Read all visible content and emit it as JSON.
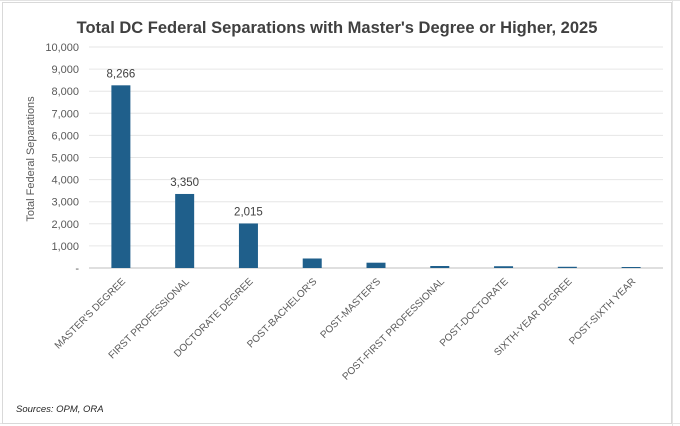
{
  "chart_data": {
    "type": "bar",
    "title": "Total DC Federal Separations with Master's Degree or Higher, 2025",
    "xlabel": "",
    "ylabel": "Total Federal Separations",
    "ylim": [
      0,
      10000
    ],
    "yticks": [
      "-",
      "1,000",
      "2,000",
      "3,000",
      "4,000",
      "5,000",
      "6,000",
      "7,000",
      "8,000",
      "9,000",
      "10,000"
    ],
    "categories": [
      "MASTER'S DEGREE",
      "FIRST PROFESSIONAL",
      "DOCTORATE DEGREE",
      "POST-BACHELOR'S",
      "POST-MASTER'S",
      "POST-FIRST PROFESSIONAL",
      "POST-DOCTORATE",
      "SIXTH-YEAR DEGREE",
      "POST-SIXTH YEAR"
    ],
    "values": [
      8266,
      3350,
      2015,
      430,
      240,
      90,
      80,
      55,
      45
    ],
    "data_labels": [
      "8,266",
      "3,350",
      "2,015",
      "",
      "",
      "",
      "",
      "",
      ""
    ],
    "bar_color": "#1f5f8b",
    "grid": true,
    "legend": "none"
  },
  "source_note": "Sources: OPM, ORA"
}
